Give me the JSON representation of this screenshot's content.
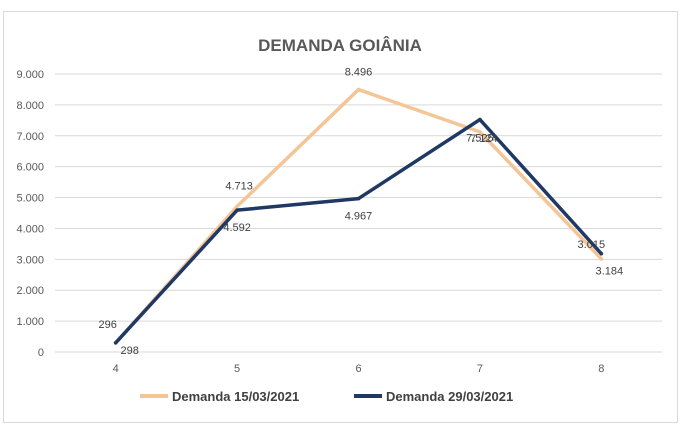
{
  "chart_data": {
    "type": "line",
    "title": "DEMANDA GOIÂNIA",
    "xlabel": "",
    "ylabel": "",
    "categories": [
      "4",
      "5",
      "6",
      "7",
      "8"
    ],
    "ylim": [
      0,
      9000
    ],
    "y_ticks": [
      0,
      1000,
      2000,
      3000,
      4000,
      5000,
      6000,
      7000,
      8000,
      9000
    ],
    "y_tick_labels": [
      "0",
      "1.000",
      "2.000",
      "3.000",
      "4.000",
      "5.000",
      "6.000",
      "7.000",
      "8.000",
      "9.000"
    ],
    "grid": true,
    "legend_position": "bottom",
    "series": [
      {
        "name": "Demanda 15/03/2021",
        "color": "#f4c597",
        "values": [
          296,
          4713,
          8496,
          7124,
          3015
        ],
        "labels": [
          "296",
          "4.713",
          "8.496",
          "7.124",
          "3.015"
        ]
      },
      {
        "name": "Demanda 29/03/2021",
        "color": "#1f3864",
        "values": [
          298,
          4592,
          4967,
          7525,
          3184
        ],
        "labels": [
          "298",
          "4.592",
          "4.967",
          "7.525",
          "3.184"
        ]
      }
    ]
  }
}
